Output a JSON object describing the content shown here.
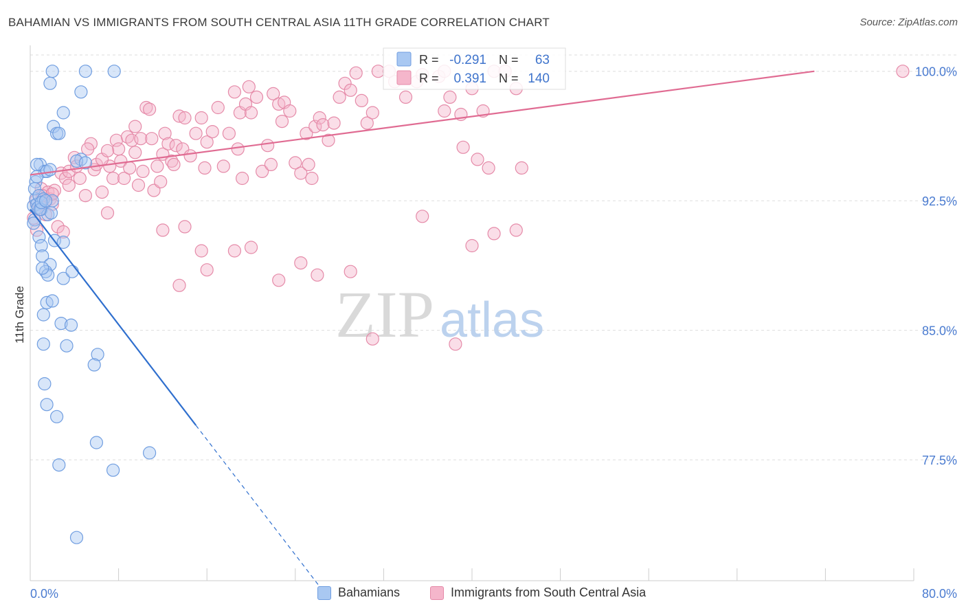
{
  "chart_data": {
    "type": "scatter",
    "title": "BAHAMIAN VS IMMIGRANTS FROM SOUTH CENTRAL ASIA 11TH GRADE CORRELATION CHART",
    "source": "Source: ZipAtlas.com",
    "xlabel": "",
    "ylabel": "11th Grade",
    "xlim": [
      0,
      80
    ],
    "ylim": [
      70.5,
      101.5
    ],
    "x_tick_labels": {
      "min": "0.0%",
      "max": "80.0%"
    },
    "y_ticks": [
      100.0,
      92.5,
      85.0,
      77.5
    ],
    "y_tick_labels": [
      "100.0%",
      "92.5%",
      "85.0%",
      "77.5%"
    ],
    "watermark": {
      "zip": "ZIP",
      "atlas": "atlas"
    },
    "colors": {
      "blue_fill": "#a9c8f2",
      "blue_stroke": "#6f9de0",
      "blue_line": "#2f6fce",
      "pink_fill": "#f5b6cb",
      "pink_stroke": "#e58aa8",
      "pink_line": "#e06b92",
      "tick_label": "#4a7bd0",
      "grid": "#dddddd"
    },
    "stats": {
      "r_label": "R =",
      "n_label": "N =",
      "blue_r": "-0.291",
      "blue_n": "63",
      "pink_r": "0.391",
      "pink_n": "140"
    },
    "series": [
      {
        "name": "Bahamians",
        "trend": {
          "x0": 0,
          "y0": 92.0,
          "x1": 15,
          "y1": 79.5,
          "dash_to_x": 26.5
        },
        "points": [
          [
            0.3,
            92.2
          ],
          [
            0.5,
            92.6
          ],
          [
            0.6,
            92.3
          ],
          [
            0.4,
            91.4
          ],
          [
            0.7,
            92.1
          ],
          [
            0.5,
            93.6
          ],
          [
            0.4,
            93.2
          ],
          [
            0.8,
            92.8
          ],
          [
            1.0,
            92.0
          ],
          [
            1.2,
            92.6
          ],
          [
            0.9,
            94.6
          ],
          [
            1.3,
            94.2
          ],
          [
            1.5,
            94.2
          ],
          [
            0.6,
            94.6
          ],
          [
            1.8,
            94.3
          ],
          [
            1.6,
            91.7
          ],
          [
            2.0,
            92.5
          ],
          [
            0.8,
            90.4
          ],
          [
            1.0,
            89.9
          ],
          [
            2.2,
            90.2
          ],
          [
            3.0,
            90.1
          ],
          [
            1.1,
            89.3
          ],
          [
            1.8,
            88.8
          ],
          [
            1.4,
            88.4
          ],
          [
            1.6,
            88.2
          ],
          [
            1.1,
            88.6
          ],
          [
            3.0,
            88.0
          ],
          [
            3.8,
            88.4
          ],
          [
            1.5,
            86.6
          ],
          [
            2.0,
            86.7
          ],
          [
            1.2,
            85.9
          ],
          [
            2.8,
            85.4
          ],
          [
            3.7,
            85.3
          ],
          [
            1.2,
            84.2
          ],
          [
            3.3,
            84.1
          ],
          [
            6.1,
            83.6
          ],
          [
            5.8,
            83.0
          ],
          [
            1.3,
            81.9
          ],
          [
            1.5,
            80.7
          ],
          [
            2.4,
            80.0
          ],
          [
            6.0,
            78.5
          ],
          [
            10.8,
            77.9
          ],
          [
            2.6,
            77.2
          ],
          [
            7.5,
            76.9
          ],
          [
            4.2,
            73.0
          ],
          [
            1.8,
            99.3
          ],
          [
            2.0,
            100.0
          ],
          [
            5.0,
            100.0
          ],
          [
            7.6,
            100.0
          ],
          [
            4.6,
            98.8
          ],
          [
            3.0,
            97.6
          ],
          [
            2.1,
            96.8
          ],
          [
            2.4,
            96.4
          ],
          [
            2.6,
            96.4
          ],
          [
            4.6,
            94.9
          ],
          [
            4.2,
            94.8
          ],
          [
            5.0,
            94.7
          ],
          [
            1.9,
            91.8
          ],
          [
            0.6,
            93.9
          ],
          [
            0.3,
            91.2
          ],
          [
            0.9,
            92.0
          ],
          [
            1.0,
            92.4
          ],
          [
            1.4,
            92.5
          ]
        ]
      },
      {
        "name": "Immigrants from South Central Asia",
        "trend": {
          "x0": 0,
          "y0": 94.0,
          "x1": 71,
          "y1": 100.0
        },
        "points": [
          [
            0.3,
            91.5
          ],
          [
            0.5,
            92.5
          ],
          [
            0.8,
            92.0
          ],
          [
            1.0,
            93.2
          ],
          [
            1.2,
            92.6
          ],
          [
            1.4,
            91.7
          ],
          [
            1.6,
            93.0
          ],
          [
            1.8,
            92.6
          ],
          [
            2.0,
            92.3
          ],
          [
            2.2,
            93.1
          ],
          [
            2.5,
            91.0
          ],
          [
            2.8,
            94.1
          ],
          [
            3.0,
            90.7
          ],
          [
            3.2,
            93.8
          ],
          [
            3.5,
            94.2
          ],
          [
            4.0,
            95.0
          ],
          [
            4.2,
            94.5
          ],
          [
            4.5,
            93.8
          ],
          [
            5.0,
            92.8
          ],
          [
            5.5,
            95.8
          ],
          [
            5.8,
            94.3
          ],
          [
            6.0,
            94.6
          ],
          [
            6.5,
            93.0
          ],
          [
            7.0,
            91.8
          ],
          [
            7.2,
            94.5
          ],
          [
            7.5,
            93.8
          ],
          [
            7.8,
            96.0
          ],
          [
            8.0,
            95.5
          ],
          [
            8.2,
            94.8
          ],
          [
            8.5,
            93.8
          ],
          [
            8.8,
            96.2
          ],
          [
            9.0,
            94.4
          ],
          [
            9.2,
            96.0
          ],
          [
            9.5,
            96.8
          ],
          [
            9.8,
            93.4
          ],
          [
            10.0,
            96.1
          ],
          [
            10.2,
            94.2
          ],
          [
            10.5,
            97.9
          ],
          [
            10.8,
            97.8
          ],
          [
            11.0,
            96.1
          ],
          [
            11.2,
            93.1
          ],
          [
            11.5,
            94.5
          ],
          [
            11.8,
            93.6
          ],
          [
            12.0,
            95.2
          ],
          [
            12.2,
            96.4
          ],
          [
            12.5,
            95.8
          ],
          [
            12.8,
            94.8
          ],
          [
            13.0,
            94.6
          ],
          [
            13.2,
            95.7
          ],
          [
            13.5,
            97.4
          ],
          [
            13.8,
            95.5
          ],
          [
            14.0,
            97.3
          ],
          [
            14.5,
            95.1
          ],
          [
            15.0,
            96.4
          ],
          [
            15.5,
            97.3
          ],
          [
            15.8,
            94.4
          ],
          [
            16.0,
            95.9
          ],
          [
            16.5,
            96.5
          ],
          [
            17.0,
            97.9
          ],
          [
            17.5,
            94.5
          ],
          [
            18.0,
            96.4
          ],
          [
            18.5,
            98.8
          ],
          [
            18.8,
            95.5
          ],
          [
            19.0,
            97.6
          ],
          [
            19.2,
            93.8
          ],
          [
            19.5,
            98.1
          ],
          [
            19.8,
            99.1
          ],
          [
            20.0,
            97.6
          ],
          [
            20.5,
            98.5
          ],
          [
            21.0,
            94.2
          ],
          [
            21.5,
            95.7
          ],
          [
            21.8,
            94.6
          ],
          [
            22.0,
            98.7
          ],
          [
            22.5,
            98.1
          ],
          [
            22.8,
            97.1
          ],
          [
            23.0,
            98.2
          ],
          [
            23.5,
            97.7
          ],
          [
            24.0,
            94.7
          ],
          [
            24.5,
            94.1
          ],
          [
            25.0,
            96.4
          ],
          [
            25.2,
            94.6
          ],
          [
            25.5,
            93.8
          ],
          [
            25.8,
            96.8
          ],
          [
            26.2,
            97.3
          ],
          [
            26.5,
            96.9
          ],
          [
            27.0,
            96.0
          ],
          [
            27.5,
            97.0
          ],
          [
            28.0,
            98.5
          ],
          [
            28.5,
            99.3
          ],
          [
            29.0,
            98.9
          ],
          [
            29.5,
            99.9
          ],
          [
            30.0,
            98.3
          ],
          [
            30.5,
            97.0
          ],
          [
            31.0,
            97.6
          ],
          [
            31.5,
            100.0
          ],
          [
            32.5,
            100.0
          ],
          [
            33.0,
            99.4
          ],
          [
            34.0,
            98.5
          ],
          [
            35.0,
            99.4
          ],
          [
            35.5,
            99.8
          ],
          [
            37.0,
            99.7
          ],
          [
            37.5,
            100.0
          ],
          [
            38.0,
            98.5
          ],
          [
            39.0,
            97.5
          ],
          [
            40.0,
            99.0
          ],
          [
            41.0,
            97.7
          ],
          [
            42.0,
            100.0
          ],
          [
            43.0,
            100.0
          ],
          [
            44.0,
            99.0
          ],
          [
            37.5,
            97.7
          ],
          [
            39.2,
            95.6
          ],
          [
            40.5,
            94.9
          ],
          [
            41.5,
            94.4
          ],
          [
            44.5,
            94.4
          ],
          [
            15.5,
            89.6
          ],
          [
            20.0,
            89.8
          ],
          [
            22.5,
            87.9
          ],
          [
            24.5,
            88.9
          ],
          [
            26.0,
            88.2
          ],
          [
            29.0,
            88.4
          ],
          [
            31.0,
            84.5
          ],
          [
            35.5,
            91.6
          ],
          [
            40.0,
            89.9
          ],
          [
            42.0,
            90.6
          ],
          [
            44.0,
            90.8
          ],
          [
            38.5,
            84.2
          ],
          [
            13.5,
            87.6
          ],
          [
            16.0,
            88.5
          ],
          [
            18.5,
            89.6
          ],
          [
            12.0,
            90.8
          ],
          [
            14.0,
            91.0
          ],
          [
            79.0,
            100.0
          ],
          [
            0.6,
            90.8
          ],
          [
            1.1,
            92.8
          ],
          [
            2.0,
            92.9
          ],
          [
            3.5,
            93.4
          ],
          [
            5.2,
            95.5
          ],
          [
            6.5,
            94.9
          ],
          [
            7.0,
            95.4
          ],
          [
            9.5,
            95.3
          ]
        ]
      }
    ]
  }
}
